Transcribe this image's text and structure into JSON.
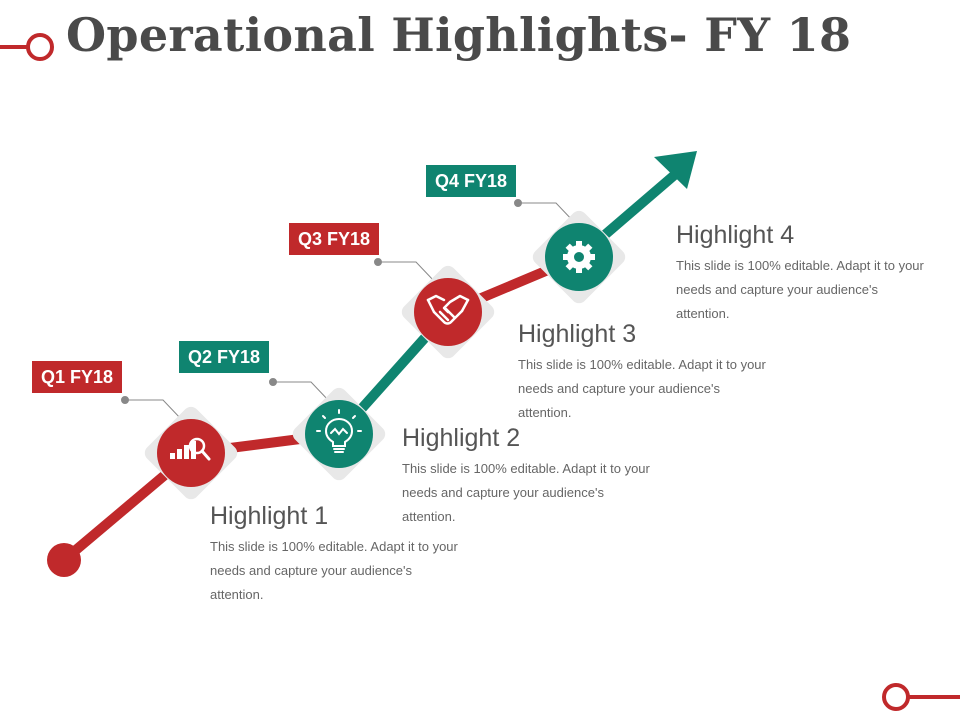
{
  "title": "Operational Highlights- FY 18",
  "colors": {
    "red": "#c0292b",
    "teal": "#0f8470",
    "diamond": "#e8e8e8",
    "connector": "#888888",
    "title": "#4a4a4a",
    "text": "#666666"
  },
  "milestones": [
    {
      "label": "Q1 FY18",
      "icon": "growth-chart-magnifier-icon",
      "color": "red"
    },
    {
      "label": "Q2 FY18",
      "icon": "lightbulb-icon",
      "color": "teal"
    },
    {
      "label": "Q3 FY18",
      "icon": "handshake-icon",
      "color": "red"
    },
    {
      "label": "Q4 FY18",
      "icon": "gear-icon",
      "color": "teal"
    }
  ],
  "highlights": [
    {
      "title": "Highlight 1",
      "text": "This slide is 100% editable. Adapt it to your needs and capture your audience's attention."
    },
    {
      "title": "Highlight 2",
      "text": "This slide is 100% editable. Adapt it to your needs and capture your audience's attention."
    },
    {
      "title": "Highlight 3",
      "text": "This slide is 100% editable. Adapt it to your needs and capture your audience's attention."
    },
    {
      "title": "Highlight 4",
      "text": "This slide is 100% editable. Adapt it to your needs and capture your audience's attention."
    }
  ]
}
